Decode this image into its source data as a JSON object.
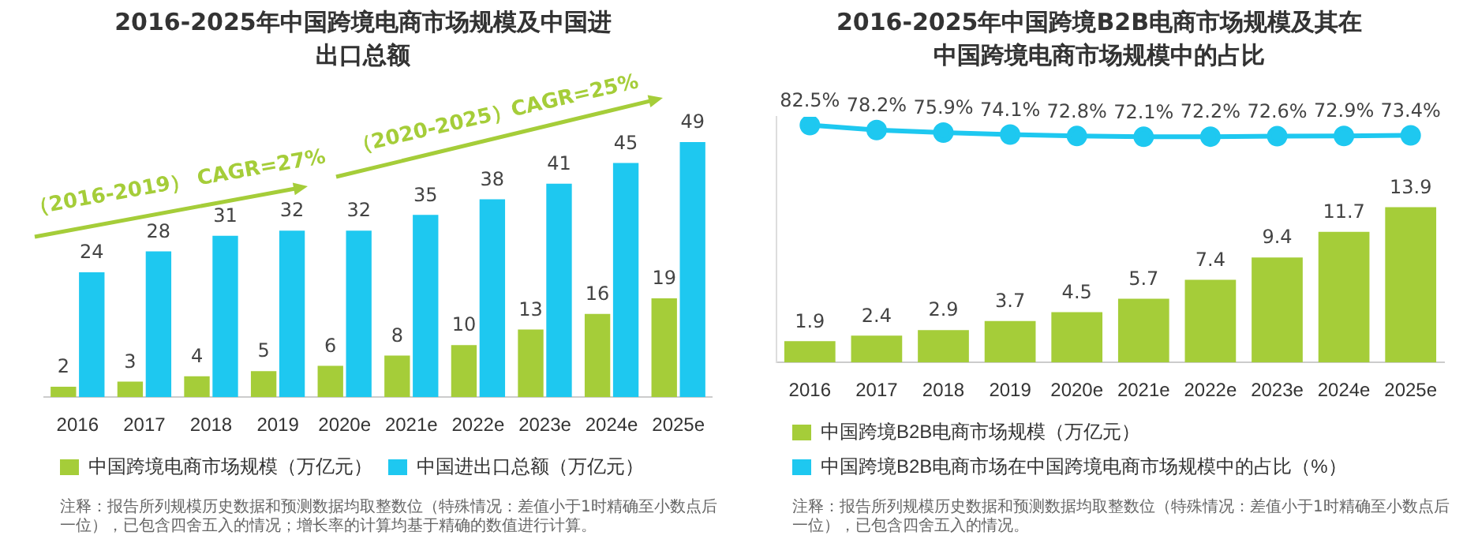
{
  "chart_data": [
    {
      "type": "bar",
      "title": "2016-2025年中国跨境电商市场规模及中国进出口总额",
      "categories": [
        "2016",
        "2017",
        "2018",
        "2019",
        "2020e",
        "2021e",
        "2022e",
        "2023e",
        "2024e",
        "2025e"
      ],
      "series": [
        {
          "name": "中国跨境电商市场规模（万亿元）",
          "color": "#a5cd39",
          "values": [
            2,
            3,
            4,
            5,
            6,
            8,
            10,
            13,
            16,
            19
          ]
        },
        {
          "name": "中国进出口总额（万亿元）",
          "color": "#1ec8f0",
          "values": [
            24,
            28,
            31,
            32,
            32,
            35,
            38,
            41,
            45,
            49
          ]
        }
      ],
      "ylim": [
        0,
        49
      ],
      "tick_labels": "x",
      "data_labels": true,
      "legend": "bottom",
      "annotations": [
        "（2016-2019） CAGR=27%",
        "（2020-2025）CAGR=25%",
        "注释：报告所列规模历史数据和预测数据均取整数位（特殊情况：差值小于1时精确至小数点后一位），已包含四舍五入的情况；增长率的计算均基于精确的数值进行计算。"
      ]
    },
    {
      "type": "bar",
      "title": "2016-2025年中国跨境B2B电商市场规模及其在中国跨境电商市场规模中的占比",
      "categories": [
        "2016",
        "2017",
        "2018",
        "2019",
        "2020e",
        "2021e",
        "2022e",
        "2023e",
        "2024e",
        "2025e"
      ],
      "series": [
        {
          "name": "中国跨境B2B电商市场规模（万亿元）",
          "color": "#a5cd39",
          "values": [
            1.9,
            2.4,
            2.9,
            3.7,
            4.5,
            5.7,
            7.4,
            9.4,
            11.7,
            13.9
          ]
        },
        {
          "name": "中国跨境B2B电商市场在中国跨境电商市场规模中的占比（%）",
          "color": "#1ec8f0",
          "type": "line",
          "axis": "y2",
          "values": [
            82.5,
            78.2,
            75.9,
            74.1,
            72.8,
            72.1,
            72.2,
            72.6,
            72.9,
            73.4
          ],
          "value_labels": [
            "82.5%",
            "78.2%",
            "75.9%",
            "74.1%",
            "72.8%",
            "72.1%",
            "72.2%",
            "72.6%",
            "72.9%",
            "73.4%"
          ]
        }
      ],
      "ylim": [
        0,
        22
      ],
      "y2lim": [
        -130,
        90
      ],
      "tick_labels": "x",
      "data_labels": true,
      "marker": "circle",
      "legend": "bottom",
      "annotations": [
        "注释：报告所列规模历史数据和预测数据均取整数位（特殊情况：差值小于1时精确至小数点后一位），已包含四舍五入的情况。"
      ]
    }
  ]
}
